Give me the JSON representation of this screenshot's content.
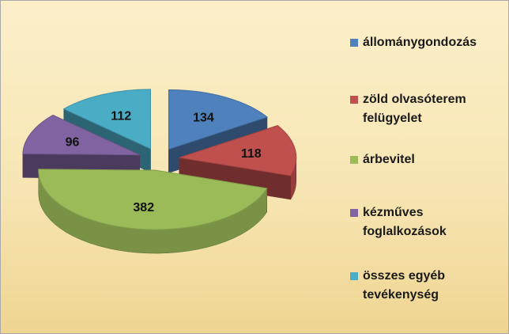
{
  "chart_data": {
    "type": "pie",
    "title": "",
    "categories": [
      "állománygondozás",
      "zöld olvasóterem felügyelet",
      "árbevitel",
      "kézműves foglalkozások",
      "összes egyéb tevékenység"
    ],
    "values": [
      134,
      118,
      382,
      96,
      112
    ],
    "colors": [
      "#4f81bd",
      "#c0504d",
      "#9bbb59",
      "#8064a2",
      "#4bacc6"
    ],
    "legend_position": "right",
    "style": "3d-exploded"
  }
}
